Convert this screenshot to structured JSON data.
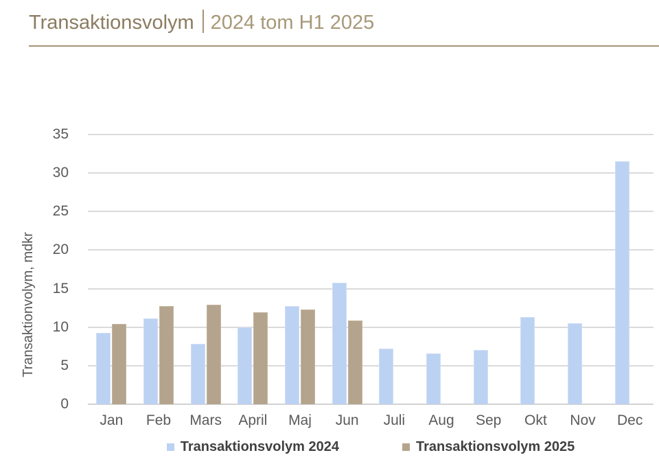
{
  "title": {
    "main": "Transaktionsvolym",
    "sub": "2024 tom H1 2025"
  },
  "colors": {
    "title_main": "#8b7c60",
    "title_sub": "#a79878",
    "divider": "#a59374",
    "rule": "#a59374",
    "series_2024": "#bcd2f2",
    "series_2024_border": "#cfdef7",
    "series_2025": "#b5a48d",
    "series_2025_border": "#c3b5a0",
    "gridline": "#dadada",
    "baseline": "#d2d2d2",
    "axis_text": "#5a5a5a",
    "legend_text": "#404040"
  },
  "chart_data": {
    "type": "bar",
    "title": "Transaktionsvolym | 2024 tom H1 2025",
    "categories": [
      "Jan",
      "Feb",
      "Mars",
      "April",
      "Maj",
      "Jun",
      "Juli",
      "Aug",
      "Sep",
      "Okt",
      "Nov",
      "Dec"
    ],
    "series": [
      {
        "name": "Transaktionsvolym 2024",
        "values": [
          9.3,
          11.1,
          7.8,
          10.0,
          12.7,
          15.8,
          7.2,
          6.6,
          7.0,
          11.3,
          10.5,
          31.5
        ]
      },
      {
        "name": "Transaktionsvolym 2025",
        "values": [
          10.4,
          12.7,
          12.9,
          11.9,
          12.3,
          10.9,
          null,
          null,
          null,
          null,
          null,
          null
        ]
      }
    ],
    "xlabel": "",
    "ylabel": "Transaktionvolym, mdkr",
    "ylim": [
      0,
      35
    ],
    "yticks": [
      0,
      5,
      10,
      15,
      20,
      25,
      30,
      35
    ],
    "grid": true,
    "legend_position": "bottom"
  }
}
